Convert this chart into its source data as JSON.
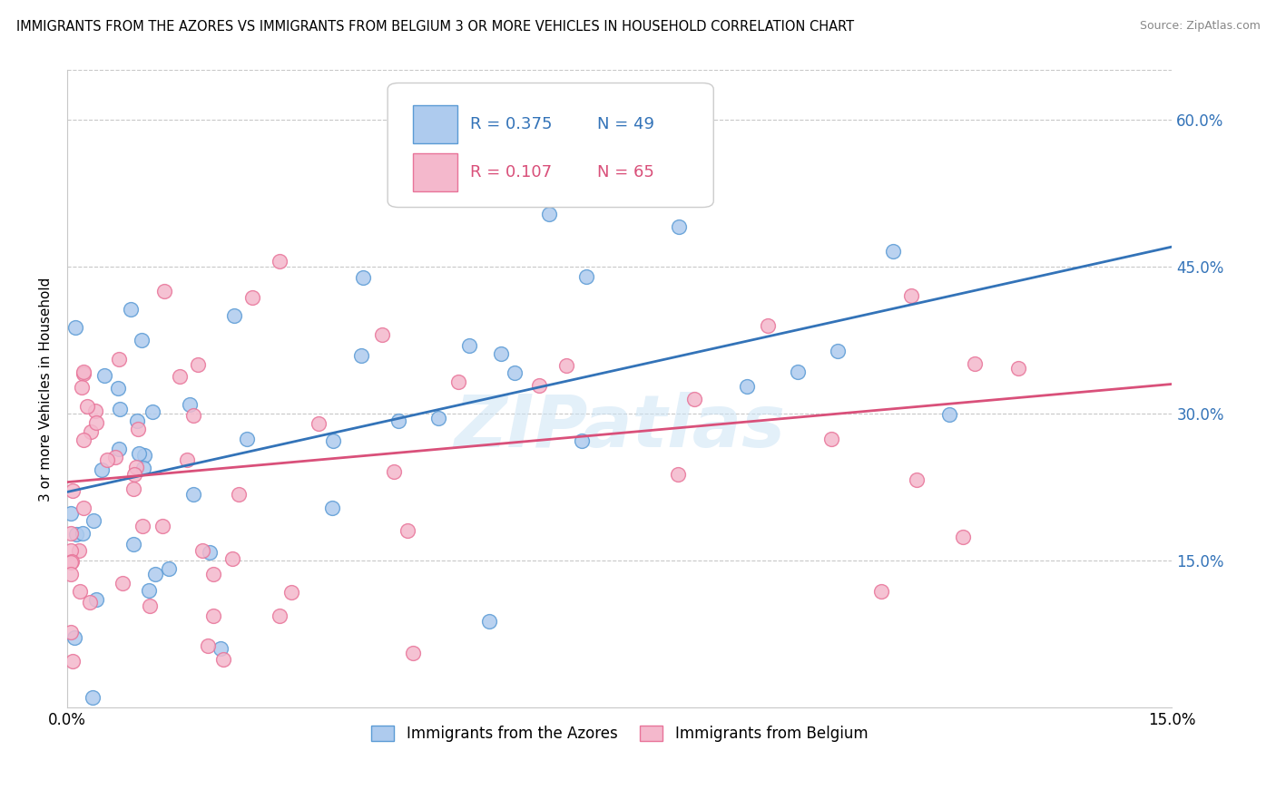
{
  "title": "IMMIGRANTS FROM THE AZORES VS IMMIGRANTS FROM BELGIUM 3 OR MORE VEHICLES IN HOUSEHOLD CORRELATION CHART",
  "source": "Source: ZipAtlas.com",
  "ylabel": "3 or more Vehicles in Household",
  "y_ticks_labels": [
    "15.0%",
    "30.0%",
    "45.0%",
    "60.0%"
  ],
  "y_tick_vals": [
    0.15,
    0.3,
    0.45,
    0.6
  ],
  "xlim": [
    0.0,
    0.15
  ],
  "ylim": [
    0.0,
    0.65
  ],
  "azores_color": "#aecbee",
  "azores_edge": "#5b9bd5",
  "belgium_color": "#f4b8cc",
  "belgium_edge": "#e87499",
  "azores_line_color": "#3373b8",
  "belgium_line_color": "#d9507a",
  "azores_R": 0.375,
  "azores_N": 49,
  "belgium_R": 0.107,
  "belgium_N": 65,
  "legend_label_azores": "Immigrants from the Azores",
  "legend_label_belgium": "Immigrants from Belgium",
  "watermark": "ZIPatlas",
  "legend_R_color": "#3373b8",
  "legend_R2_color": "#d9507a",
  "azores_line_x0": 0.0,
  "azores_line_y0": 0.22,
  "azores_line_x1": 0.15,
  "azores_line_y1": 0.47,
  "belgium_line_x0": 0.0,
  "belgium_line_y0": 0.23,
  "belgium_line_x1": 0.15,
  "belgium_line_y1": 0.33
}
